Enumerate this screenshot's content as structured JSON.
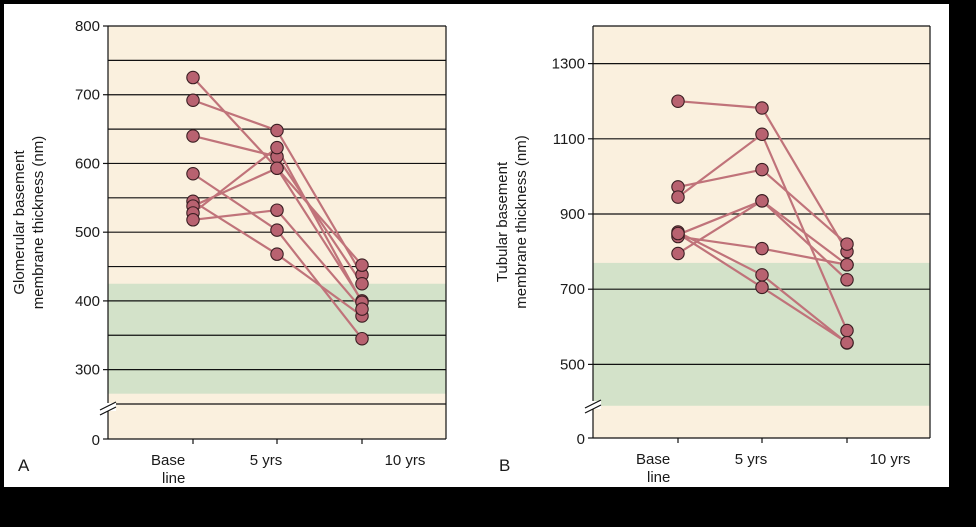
{
  "chart_data": [
    {
      "type": "line",
      "panel_label": "A",
      "ylabel": [
        "Glomerular basement",
        "membrane thickness (nm)"
      ],
      "categories": [
        "Base line",
        "5 yrs",
        "10 yrs"
      ],
      "yticks": [
        300,
        400,
        500,
        600,
        700,
        800
      ],
      "ylim": [
        250,
        800
      ],
      "axis_break": true,
      "zero_label": "0",
      "gridlines": [
        250,
        300,
        350,
        400,
        450,
        500,
        550,
        600,
        650,
        700,
        750
      ],
      "background_color": "#faf0de",
      "normal_range": {
        "from": 265,
        "to": 425,
        "color": "#d3e2c9"
      },
      "series_color": "#c0737a",
      "point_color": "#b86270",
      "series": [
        {
          "values": [
            725,
            593,
            400
          ]
        },
        {
          "values": [
            692,
            648,
            438
          ]
        },
        {
          "values": [
            640,
            610,
            425
          ]
        },
        {
          "values": [
            585,
            503,
            345
          ]
        },
        {
          "values": [
            545,
            468,
            378
          ]
        },
        {
          "values": [
            538,
            593,
            452
          ]
        },
        {
          "values": [
            528,
            623,
            398
          ]
        },
        {
          "values": [
            518,
            532,
            388
          ]
        }
      ]
    },
    {
      "type": "line",
      "panel_label": "B",
      "ylabel": [
        "Tubular basement",
        "membrane thickness (nm)"
      ],
      "categories": [
        "Base line",
        "5 yrs",
        "10 yrs"
      ],
      "yticks": [
        500,
        700,
        900,
        1100,
        1300
      ],
      "ylim": [
        400,
        1400
      ],
      "axis_break": true,
      "zero_label": "0",
      "gridlines": [
        500,
        700,
        900,
        1100,
        1300
      ],
      "background_color": "#faf0de",
      "normal_range": {
        "from": 390,
        "to": 770,
        "color": "#d3e2c9"
      },
      "series_color": "#c0737a",
      "point_color": "#b86270",
      "series": [
        {
          "values": [
            1200,
            1182,
            800
          ]
        },
        {
          "values": [
            972,
            1018,
            820
          ]
        },
        {
          "values": [
            945,
            1112,
            590
          ]
        },
        {
          "values": [
            852,
            738,
            557
          ]
        },
        {
          "values": [
            845,
            935,
            725
          ]
        },
        {
          "values": [
            840,
            808,
            765
          ]
        },
        {
          "values": [
            795,
            935,
            765
          ]
        },
        {
          "values": [
            848,
            705,
            558
          ]
        }
      ]
    }
  ]
}
